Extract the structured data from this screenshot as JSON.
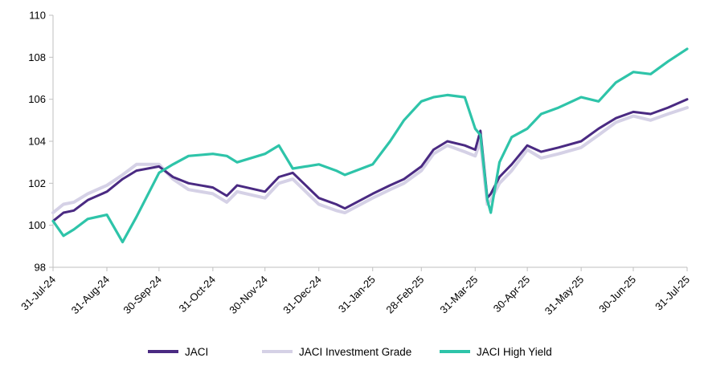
{
  "chart_data": {
    "type": "line",
    "title": "",
    "xlabel": "",
    "ylabel": "",
    "ylim": [
      98,
      110
    ],
    "yticks": [
      98,
      100,
      102,
      104,
      106,
      108,
      110
    ],
    "grid": false,
    "legend_position": "bottom",
    "x_tick_labels": [
      "31-Jul-24",
      "31-Aug-24",
      "30-Sep-24",
      "31-Oct-24",
      "30-Nov-24",
      "31-Dec-24",
      "31-Jan-25",
      "28-Feb-25",
      "31-Mar-25",
      "30-Apr-25",
      "31-May-25",
      "30-Jun-25",
      "31-Jul-25"
    ],
    "x": [
      "2024-07-31",
      "2024-08-06",
      "2024-08-12",
      "2024-08-20",
      "2024-08-31",
      "2024-09-09",
      "2024-09-17",
      "2024-09-30",
      "2024-10-08",
      "2024-10-17",
      "2024-10-31",
      "2024-11-08",
      "2024-11-14",
      "2024-11-30",
      "2024-12-08",
      "2024-12-16",
      "2024-12-31",
      "2025-01-10",
      "2025-01-15",
      "2025-01-31",
      "2025-02-10",
      "2025-02-18",
      "2025-02-28",
      "2025-03-07",
      "2025-03-15",
      "2025-03-25",
      "2025-03-31",
      "2025-04-03",
      "2025-04-07",
      "2025-04-09",
      "2025-04-14",
      "2025-04-21",
      "2025-04-30",
      "2025-05-08",
      "2025-05-18",
      "2025-05-31",
      "2025-06-10",
      "2025-06-20",
      "2025-06-30",
      "2025-07-10",
      "2025-07-20",
      "2025-07-31"
    ],
    "series": [
      {
        "name": "JACI",
        "color": "#4a2a82",
        "values": [
          100.2,
          100.6,
          100.7,
          101.2,
          101.6,
          102.2,
          102.6,
          102.8,
          102.3,
          102.0,
          101.8,
          101.4,
          101.9,
          101.6,
          102.3,
          102.5,
          101.3,
          101.0,
          100.8,
          101.5,
          101.9,
          102.2,
          102.8,
          103.6,
          104.0,
          103.8,
          103.6,
          104.5,
          101.3,
          101.5,
          102.3,
          102.9,
          103.8,
          103.5,
          103.7,
          104.0,
          104.6,
          105.1,
          105.4,
          105.3,
          105.6,
          106.0
        ]
      },
      {
        "name": "JACI Investment Grade",
        "color": "#d5d1e6",
        "values": [
          100.6,
          101.0,
          101.1,
          101.5,
          101.9,
          102.4,
          102.9,
          102.9,
          102.2,
          101.7,
          101.5,
          101.1,
          101.6,
          101.3,
          102.0,
          102.2,
          101.0,
          100.7,
          100.6,
          101.3,
          101.7,
          102.0,
          102.6,
          103.4,
          103.8,
          103.5,
          103.3,
          104.0,
          101.0,
          101.2,
          102.0,
          102.6,
          103.6,
          103.2,
          103.4,
          103.7,
          104.3,
          104.9,
          105.2,
          105.0,
          105.3,
          105.6
        ]
      },
      {
        "name": "JACI High Yield",
        "color": "#2ec4a9",
        "values": [
          100.2,
          99.5,
          99.8,
          100.3,
          100.5,
          99.2,
          100.4,
          102.5,
          102.9,
          103.3,
          103.4,
          103.3,
          103.0,
          103.4,
          103.8,
          102.7,
          102.9,
          102.6,
          102.4,
          102.9,
          104.0,
          105.0,
          105.9,
          106.1,
          106.2,
          106.1,
          104.6,
          104.3,
          101.2,
          100.6,
          103.0,
          104.2,
          104.6,
          105.3,
          105.6,
          106.1,
          105.9,
          106.8,
          107.3,
          107.2,
          107.8,
          108.4
        ]
      }
    ]
  }
}
